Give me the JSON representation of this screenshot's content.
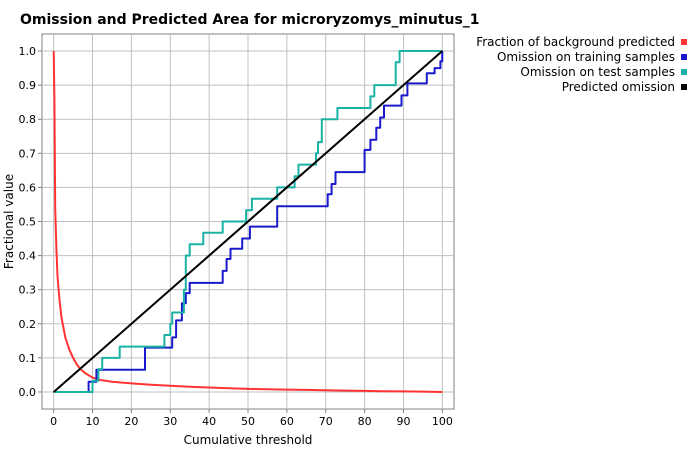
{
  "chart_data": {
    "type": "line",
    "title": "Omission and Predicted Area for microryzomys_minutus_1",
    "xlabel": "Cumulative threshold",
    "ylabel": "Fractional value",
    "xlim": [
      -3,
      103
    ],
    "ylim": [
      -0.05,
      1.05
    ],
    "x_ticks": [
      0,
      10,
      20,
      30,
      40,
      50,
      60,
      70,
      80,
      90,
      100
    ],
    "y_ticks": [
      0.0,
      0.1,
      0.2,
      0.3,
      0.4,
      0.5,
      0.6,
      0.7,
      0.8,
      0.9,
      1.0
    ],
    "grid": true,
    "legend_position": "right-top",
    "series": [
      {
        "name": "Fraction of background predicted",
        "color": "#ff3333",
        "step": false,
        "points": [
          [
            0,
            1.0
          ],
          [
            0.2,
            0.86
          ],
          [
            0.4,
            0.54
          ],
          [
            0.7,
            0.42
          ],
          [
            1,
            0.34
          ],
          [
            1.5,
            0.27
          ],
          [
            2,
            0.22
          ],
          [
            3,
            0.16
          ],
          [
            4,
            0.125
          ],
          [
            5,
            0.1
          ],
          [
            6,
            0.08
          ],
          [
            7,
            0.066
          ],
          [
            8,
            0.056
          ],
          [
            10,
            0.042
          ],
          [
            12,
            0.035
          ],
          [
            15,
            0.03
          ],
          [
            20,
            0.025
          ],
          [
            25,
            0.021
          ],
          [
            30,
            0.018
          ],
          [
            35,
            0.015
          ],
          [
            40,
            0.013
          ],
          [
            45,
            0.011
          ],
          [
            50,
            0.009
          ],
          [
            55,
            0.008
          ],
          [
            60,
            0.007
          ],
          [
            65,
            0.006
          ],
          [
            70,
            0.005
          ],
          [
            75,
            0.004
          ],
          [
            80,
            0.003
          ],
          [
            85,
            0.002
          ],
          [
            90,
            0.0015
          ],
          [
            95,
            0.001
          ],
          [
            100,
            0.0
          ]
        ]
      },
      {
        "name": "Omission on training samples",
        "color": "#1a1acc",
        "step": true,
        "points": [
          [
            0,
            0.0
          ],
          [
            9,
            0.0
          ],
          [
            9,
            0.03
          ],
          [
            11,
            0.03
          ],
          [
            11,
            0.065
          ],
          [
            23.5,
            0.065
          ],
          [
            23.5,
            0.13
          ],
          [
            30.5,
            0.13
          ],
          [
            30.5,
            0.16
          ],
          [
            31.5,
            0.16
          ],
          [
            31.5,
            0.21
          ],
          [
            33,
            0.21
          ],
          [
            33,
            0.26
          ],
          [
            34,
            0.26
          ],
          [
            34,
            0.29
          ],
          [
            35,
            0.29
          ],
          [
            35,
            0.32
          ],
          [
            43.5,
            0.32
          ],
          [
            43.5,
            0.355
          ],
          [
            44.5,
            0.355
          ],
          [
            44.5,
            0.39
          ],
          [
            45.5,
            0.39
          ],
          [
            45.5,
            0.42
          ],
          [
            48.5,
            0.42
          ],
          [
            48.5,
            0.45
          ],
          [
            50.5,
            0.45
          ],
          [
            50.5,
            0.485
          ],
          [
            57.5,
            0.485
          ],
          [
            57.5,
            0.545
          ],
          [
            70.5,
            0.545
          ],
          [
            70.5,
            0.58
          ],
          [
            71.5,
            0.58
          ],
          [
            71.5,
            0.61
          ],
          [
            72.5,
            0.61
          ],
          [
            72.5,
            0.645
          ],
          [
            80,
            0.645
          ],
          [
            80,
            0.71
          ],
          [
            81.5,
            0.71
          ],
          [
            81.5,
            0.74
          ],
          [
            83,
            0.74
          ],
          [
            83,
            0.775
          ],
          [
            84,
            0.775
          ],
          [
            84,
            0.805
          ],
          [
            85,
            0.805
          ],
          [
            85,
            0.84
          ],
          [
            89.5,
            0.84
          ],
          [
            89.5,
            0.87
          ],
          [
            91,
            0.87
          ],
          [
            91,
            0.905
          ],
          [
            96,
            0.905
          ],
          [
            96,
            0.935
          ],
          [
            98,
            0.935
          ],
          [
            98,
            0.95
          ],
          [
            99.5,
            0.95
          ],
          [
            99.5,
            0.97
          ],
          [
            100,
            0.97
          ],
          [
            100,
            1.0
          ]
        ]
      },
      {
        "name": "Omission on test samples",
        "color": "#1ab2a5",
        "step": true,
        "points": [
          [
            0,
            0.0
          ],
          [
            10,
            0.0
          ],
          [
            10,
            0.033
          ],
          [
            11.5,
            0.033
          ],
          [
            11.5,
            0.067
          ],
          [
            12.5,
            0.067
          ],
          [
            12.5,
            0.1
          ],
          [
            17,
            0.1
          ],
          [
            17,
            0.133
          ],
          [
            28.5,
            0.133
          ],
          [
            28.5,
            0.167
          ],
          [
            30,
            0.167
          ],
          [
            30,
            0.2
          ],
          [
            30.5,
            0.2
          ],
          [
            30.5,
            0.233
          ],
          [
            33.5,
            0.233
          ],
          [
            33.5,
            0.3
          ],
          [
            34,
            0.3
          ],
          [
            34,
            0.4
          ],
          [
            35,
            0.4
          ],
          [
            35,
            0.433
          ],
          [
            38.5,
            0.433
          ],
          [
            38.5,
            0.467
          ],
          [
            43.5,
            0.467
          ],
          [
            43.5,
            0.5
          ],
          [
            49.5,
            0.5
          ],
          [
            49.5,
            0.533
          ],
          [
            51,
            0.533
          ],
          [
            51,
            0.567
          ],
          [
            57.5,
            0.567
          ],
          [
            57.5,
            0.6
          ],
          [
            62,
            0.6
          ],
          [
            62,
            0.633
          ],
          [
            63,
            0.633
          ],
          [
            63,
            0.667
          ],
          [
            67.5,
            0.667
          ],
          [
            67.5,
            0.7
          ],
          [
            68,
            0.7
          ],
          [
            68,
            0.733
          ],
          [
            69,
            0.733
          ],
          [
            69,
            0.8
          ],
          [
            73,
            0.8
          ],
          [
            73,
            0.833
          ],
          [
            81.5,
            0.833
          ],
          [
            81.5,
            0.867
          ],
          [
            82.5,
            0.867
          ],
          [
            82.5,
            0.9
          ],
          [
            88,
            0.9
          ],
          [
            88,
            0.967
          ],
          [
            89,
            0.967
          ],
          [
            89,
            1.0
          ],
          [
            100,
            1.0
          ]
        ]
      },
      {
        "name": "Predicted omission",
        "color": "#000000",
        "step": false,
        "points": [
          [
            0,
            0.0
          ],
          [
            100,
            1.0
          ]
        ]
      }
    ]
  }
}
